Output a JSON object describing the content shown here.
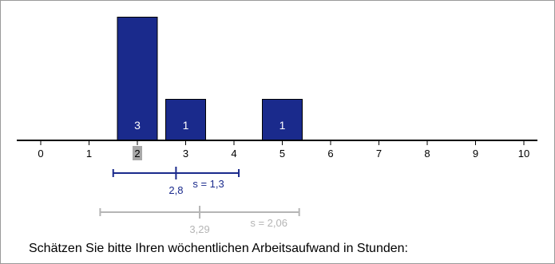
{
  "chart_data": {
    "type": "bar",
    "x_ticks": [
      "0",
      "1",
      "2",
      "3",
      "4",
      "5",
      "6",
      "7",
      "8",
      "9",
      "10"
    ],
    "bars": [
      {
        "x": 2,
        "count": 3,
        "label": "3"
      },
      {
        "x": 3,
        "count": 1,
        "label": "1"
      },
      {
        "x": 5,
        "count": 1,
        "label": "1"
      }
    ],
    "highlight_tick": 2,
    "xlim": [
      0,
      10
    ],
    "ylim": [
      0,
      3
    ],
    "stats": [
      {
        "name": "own",
        "mean": 2.8,
        "mean_label": "2,8",
        "sd": 1.3,
        "sd_label": "s = 1,3",
        "range": [
          1.5,
          4.1
        ],
        "color": "#1a2a8c"
      },
      {
        "name": "comparison",
        "mean": 3.29,
        "mean_label": "3,29",
        "sd": 2.06,
        "sd_label": "s = 2,06",
        "range": [
          1.23,
          5.35
        ],
        "color": "#b5b5b5"
      }
    ],
    "colors": {
      "bar_fill": "#1a2a8c",
      "bar_text": "#ffffff",
      "highlight": "#a8a8a8"
    }
  },
  "question": "Schätzen Sie bitte Ihren wöchentlichen Arbeitsaufwand in Stunden:"
}
